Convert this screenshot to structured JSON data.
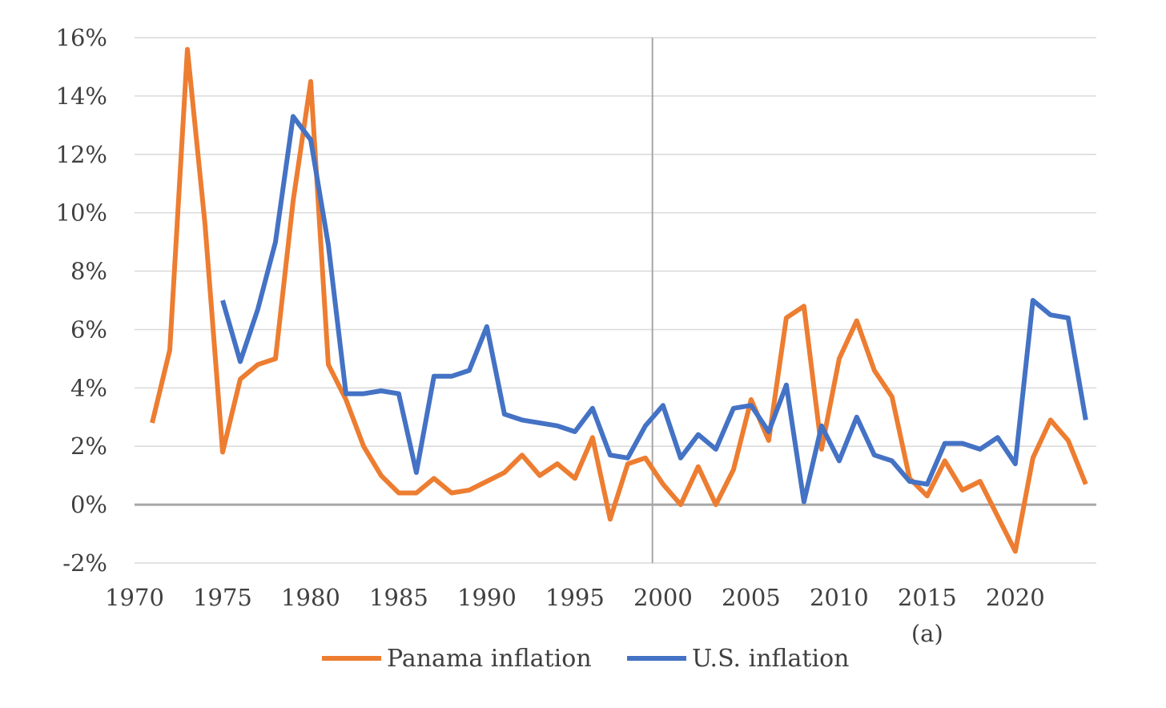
{
  "chart_data": {
    "type": "line",
    "title": "",
    "xlabel": "",
    "ylabel": "",
    "xlim": [
      1970,
      2024.6
    ],
    "ylim": [
      -2,
      16
    ],
    "x_ticks": [
      1970,
      1975,
      1980,
      1985,
      1990,
      1995,
      2000,
      2005,
      2010,
      2015,
      2020
    ],
    "x_tick_labels": [
      "1970",
      "1975",
      "1980",
      "1985",
      "1990",
      "1995",
      "2000",
      "2005",
      "2010",
      "2015",
      "2020"
    ],
    "y_ticks": [
      -2,
      0,
      2,
      4,
      6,
      8,
      10,
      12,
      14,
      16
    ],
    "y_tick_labels": [
      "-2%",
      "0%",
      "2%",
      "4%",
      "6%",
      "8%",
      "10%",
      "12%",
      "14%",
      "16%"
    ],
    "grid": true,
    "vertical_reference_line": 1999.4,
    "annotation": {
      "text": "(a)",
      "x": 2015
    },
    "legend_position": "bottom",
    "colors": {
      "panama": "#ed7d31",
      "us": "#4472c4",
      "grid": "#d9d9d9",
      "axis": "#a6a6a6"
    },
    "series": [
      {
        "name": "Panama inflation",
        "color": "#ed7d31",
        "x": [
          1971,
          1972,
          1973,
          1974,
          1975,
          1976,
          1977,
          1978,
          1979,
          1980,
          1981,
          1982,
          1983,
          1984,
          1985,
          1986,
          1987,
          1988,
          1989,
          1990,
          1991,
          1992,
          1993,
          1994,
          1995,
          1996,
          1997,
          1998,
          1999,
          2000,
          2001,
          2002,
          2003,
          2004,
          2005,
          2006,
          2007,
          2008,
          2009,
          2010,
          2011,
          2012,
          2013,
          2014,
          2015,
          2016,
          2017,
          2018,
          2019,
          2020,
          2021,
          2022,
          2023,
          2024
        ],
        "values": [
          2.8,
          5.3,
          15.6,
          9.6,
          1.8,
          4.3,
          4.8,
          5.0,
          10.4,
          14.5,
          4.8,
          3.6,
          2.0,
          1.0,
          0.4,
          0.4,
          0.9,
          0.4,
          0.5,
          0.8,
          1.1,
          1.7,
          1.0,
          1.4,
          0.9,
          2.3,
          -0.5,
          1.4,
          1.6,
          0.7,
          0.0,
          1.3,
          0.0,
          1.2,
          3.6,
          2.2,
          6.4,
          6.8,
          1.9,
          5.0,
          6.3,
          4.6,
          3.7,
          0.9,
          0.3,
          1.5,
          0.5,
          0.8,
          -0.4,
          -1.6,
          1.6,
          2.9,
          2.2,
          0.7
        ]
      },
      {
        "name": "U.S. inflation",
        "color": "#4472c4",
        "x": [
          1975,
          1976,
          1977,
          1978,
          1979,
          1980,
          1981,
          1982,
          1983,
          1984,
          1985,
          1986,
          1987,
          1988,
          1989,
          1990,
          1991,
          1992,
          1993,
          1994,
          1995,
          1996,
          1997,
          1998,
          1999,
          2000,
          2001,
          2002,
          2003,
          2004,
          2005,
          2006,
          2007,
          2008,
          2009,
          2010,
          2011,
          2012,
          2013,
          2014,
          2015,
          2016,
          2017,
          2018,
          2019,
          2020,
          2021,
          2022,
          2023,
          2024
        ],
        "values": [
          7.0,
          4.9,
          6.7,
          9.0,
          13.3,
          12.5,
          8.9,
          3.8,
          3.8,
          3.9,
          3.8,
          1.1,
          4.4,
          4.4,
          4.6,
          6.1,
          3.1,
          2.9,
          2.8,
          2.7,
          2.5,
          3.3,
          1.7,
          1.6,
          2.7,
          3.4,
          1.6,
          2.4,
          1.9,
          3.3,
          3.4,
          2.5,
          4.1,
          0.1,
          2.7,
          1.5,
          3.0,
          1.7,
          1.5,
          0.8,
          0.7,
          2.1,
          2.1,
          1.9,
          2.3,
          1.4,
          7.0,
          6.5,
          6.4,
          2.9
        ]
      }
    ]
  }
}
